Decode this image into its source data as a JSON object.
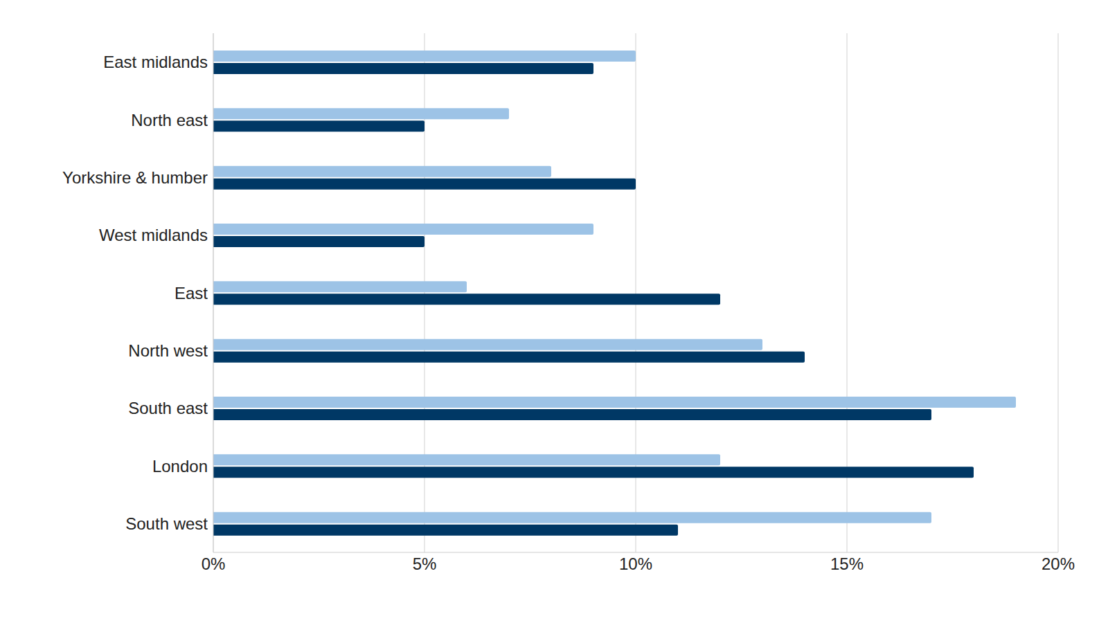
{
  "chart_data": {
    "type": "bar",
    "orientation": "horizontal",
    "grid": true,
    "categories": [
      "East midlands",
      "North east",
      "Yorkshire & humber",
      "West midlands",
      "East",
      "North west",
      "South east",
      "London",
      "South west"
    ],
    "series": [
      {
        "color": "#9dc3e6",
        "values": [
          10,
          7,
          8,
          9,
          6,
          13,
          19,
          12,
          17
        ]
      },
      {
        "color": "#003865",
        "values": [
          9,
          5,
          10,
          5,
          12,
          14,
          17,
          18,
          11
        ]
      }
    ],
    "xlim": [
      0,
      20
    ],
    "xticks": [
      {
        "value": 0,
        "label": "0%"
      },
      {
        "value": 5,
        "label": "5%"
      },
      {
        "value": 10,
        "label": "10%"
      },
      {
        "value": 15,
        "label": "15%"
      },
      {
        "value": 20,
        "label": "20%"
      }
    ]
  }
}
